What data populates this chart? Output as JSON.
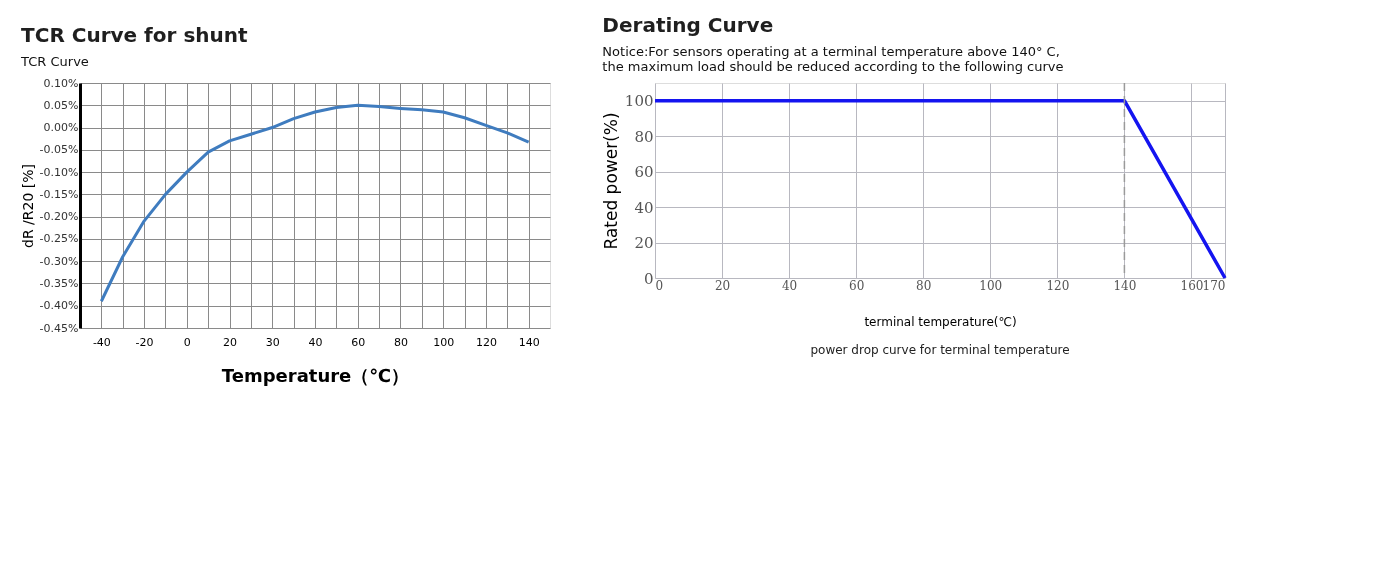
{
  "chart_data": [
    {
      "type": "line",
      "title": "TCR Curve for shunt",
      "subtitle": "TCR Curve",
      "xlabel": "Temperature（℃）",
      "ylabel": "dR /R20 [%]",
      "categories": [
        "-40",
        null,
        "-20",
        null,
        "0",
        null,
        "20",
        null,
        "30",
        null,
        "40",
        null,
        "60",
        null,
        "80",
        null,
        "100",
        null,
        "120",
        null,
        "140"
      ],
      "series": [
        {
          "color": "#3f7cbf",
          "values": [
            -0.39,
            -0.29,
            -0.21,
            -0.15,
            -0.1,
            -0.055,
            -0.03,
            -0.015,
            0.0,
            0.02,
            0.035,
            0.045,
            0.05,
            0.047,
            0.043,
            0.04,
            0.035,
            0.022,
            0.005,
            -0.012,
            -0.033
          ]
        }
      ],
      "ylim": [
        -0.45,
        0.1
      ],
      "yticks": [
        {
          "value": -0.45,
          "label": "-0.45%"
        },
        {
          "value": -0.4,
          "label": "-0.40%"
        },
        {
          "value": -0.35,
          "label": "-0.35%"
        },
        {
          "value": -0.3,
          "label": "-0.30%"
        },
        {
          "value": -0.25,
          "label": "-0.25%"
        },
        {
          "value": -0.2,
          "label": "-0.20%"
        },
        {
          "value": -0.15,
          "label": "-0.15%"
        },
        {
          "value": -0.1,
          "label": "-0.10%"
        },
        {
          "value": -0.05,
          "label": "-0.05%"
        },
        {
          "value": 0,
          "label": "0.00%"
        },
        {
          "value": 0.05,
          "label": "0.05%"
        },
        {
          "value": 0.1,
          "label": "0.10%"
        }
      ],
      "grid": true
    },
    {
      "type": "line",
      "title": "Derating Curve",
      "subtitle": "Notice:For sensors operating at a terminal temperature above 140°  C,\nthe maximum load should be reduced according to the following curve",
      "xlabel": "terminal temperature(℃)",
      "ylabel": "Rated power(%)",
      "x": [
        0,
        140,
        170
      ],
      "series": [
        {
          "color": "#1414f0",
          "values": [
            100,
            100,
            0
          ]
        }
      ],
      "xlim": [
        0,
        170
      ],
      "xticks": [
        0,
        20,
        40,
        60,
        80,
        100,
        120,
        140,
        160,
        170
      ],
      "ylim": [
        0,
        110
      ],
      "yticks": [
        0,
        20,
        40,
        60,
        80,
        100
      ],
      "ref_lines": [
        {
          "axis": "x",
          "value": 140,
          "color": "#9a9a9a",
          "line_style": "dashed"
        }
      ],
      "annotations": [
        "power drop curve for terminal temperature"
      ],
      "grid": true
    }
  ]
}
